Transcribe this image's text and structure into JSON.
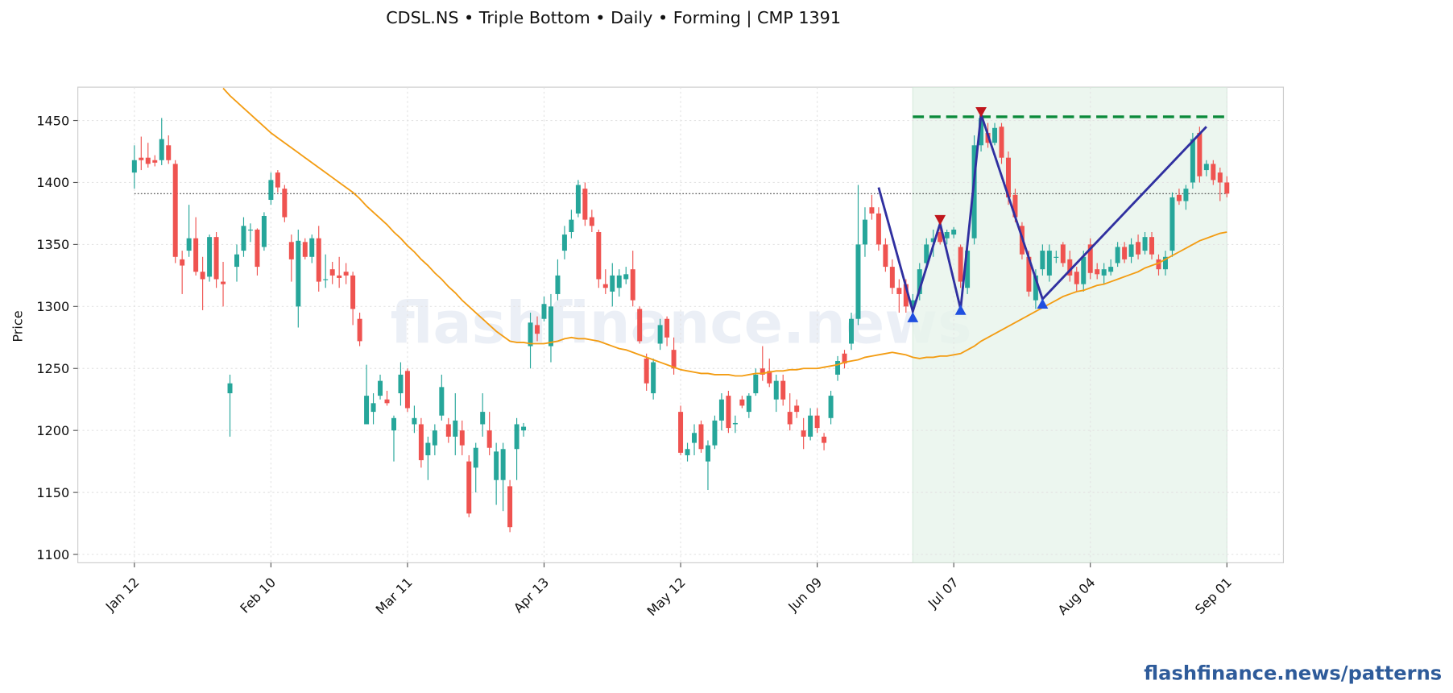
{
  "chart_data": {
    "type": "candlestick",
    "title": "CDSL.NS  •  Triple Bottom  •  Daily  •  Forming  |  CMP 1391",
    "y_label": "Price",
    "watermark": "flashfinance.news",
    "footer": "flashfinance.news/patterns",
    "categories": [
      "Jan 12",
      null,
      null,
      null,
      null,
      null,
      null,
      null,
      null,
      null,
      null,
      null,
      null,
      null,
      null,
      null,
      null,
      null,
      null,
      null,
      "Feb 10",
      null,
      null,
      null,
      null,
      null,
      null,
      null,
      null,
      null,
      null,
      null,
      null,
      null,
      null,
      null,
      null,
      null,
      null,
      null,
      "Mar 11",
      null,
      null,
      null,
      null,
      null,
      null,
      null,
      null,
      null,
      null,
      null,
      null,
      null,
      null,
      null,
      null,
      null,
      null,
      null,
      "Apr 13",
      null,
      null,
      null,
      null,
      null,
      null,
      null,
      null,
      null,
      null,
      null,
      null,
      null,
      null,
      null,
      null,
      null,
      null,
      null,
      "May 12",
      null,
      null,
      null,
      null,
      null,
      null,
      null,
      null,
      null,
      null,
      null,
      null,
      null,
      null,
      null,
      null,
      null,
      null,
      null,
      "Jun 09",
      null,
      null,
      null,
      null,
      null,
      null,
      null,
      null,
      null,
      null,
      null,
      null,
      null,
      null,
      null,
      null,
      null,
      null,
      null,
      "Jul 07",
      null,
      null,
      null,
      null,
      null,
      null,
      null,
      null,
      null,
      null,
      null,
      null,
      null,
      null,
      null,
      null,
      null,
      null,
      null,
      "Aug 04",
      null,
      null,
      null,
      null,
      null,
      null,
      null,
      null,
      null,
      null,
      null,
      null,
      null,
      null,
      null,
      null,
      null,
      null,
      null,
      "Sep 01"
    ],
    "ohlc": [
      [
        1408,
        1430,
        1395,
        1418
      ],
      [
        1420,
        1437,
        1410,
        1418
      ],
      [
        1420,
        1432,
        1412,
        1415
      ],
      [
        1418,
        1422,
        1413,
        1416
      ],
      [
        1418,
        1452,
        1414,
        1435
      ],
      [
        1430,
        1438,
        1415,
        1418
      ],
      [
        1415,
        1418,
        1335,
        1340
      ],
      [
        1338,
        1345,
        1310,
        1333
      ],
      [
        1345,
        1382,
        1340,
        1355
      ],
      [
        1355,
        1372,
        1325,
        1328
      ],
      [
        1328,
        1340,
        1297,
        1322
      ],
      [
        1324,
        1358,
        1320,
        1356
      ],
      [
        1356,
        1360,
        1315,
        1322
      ],
      [
        1320,
        1336,
        1300,
        1318
      ],
      [
        1230,
        1245,
        1195,
        1238
      ],
      [
        1332,
        1350,
        1320,
        1342
      ],
      [
        1345,
        1372,
        1340,
        1365
      ],
      [
        1362,
        1367,
        1352,
        1362
      ],
      [
        1362,
        1363,
        1325,
        1332
      ],
      [
        1348,
        1376,
        1345,
        1373
      ],
      [
        1386,
        1408,
        1382,
        1402
      ],
      [
        1408,
        1410,
        1392,
        1396
      ],
      [
        1395,
        1398,
        1368,
        1372
      ],
      [
        1352,
        1358,
        1320,
        1338
      ],
      [
        1300,
        1362,
        1283,
        1353
      ],
      [
        1352,
        1355,
        1338,
        1340
      ],
      [
        1340,
        1358,
        1335,
        1355
      ],
      [
        1355,
        1365,
        1312,
        1320
      ],
      [
        1322,
        1342,
        1315,
        1322
      ],
      [
        1330,
        1336,
        1318,
        1325
      ],
      [
        1325,
        1340,
        1315,
        1323
      ],
      [
        1328,
        1335,
        1318,
        1325
      ],
      [
        1325,
        1328,
        1285,
        1298
      ],
      [
        1290,
        1295,
        1268,
        1272
      ],
      [
        1205,
        1253,
        1205,
        1228
      ],
      [
        1215,
        1230,
        1205,
        1222
      ],
      [
        1228,
        1245,
        1225,
        1240
      ],
      [
        1225,
        1232,
        1220,
        1222
      ],
      [
        1200,
        1212,
        1175,
        1210
      ],
      [
        1230,
        1255,
        1220,
        1245
      ],
      [
        1248,
        1250,
        1215,
        1218
      ],
      [
        1205,
        1220,
        1198,
        1210
      ],
      [
        1205,
        1210,
        1170,
        1176
      ],
      [
        1180,
        1195,
        1160,
        1190
      ],
      [
        1188,
        1205,
        1180,
        1200
      ],
      [
        1212,
        1245,
        1208,
        1235
      ],
      [
        1205,
        1210,
        1190,
        1195
      ],
      [
        1195,
        1230,
        1180,
        1208
      ],
      [
        1200,
        1208,
        1180,
        1188
      ],
      [
        1175,
        1180,
        1130,
        1133
      ],
      [
        1170,
        1190,
        1150,
        1186
      ],
      [
        1205,
        1230,
        1195,
        1215
      ],
      [
        1200,
        1215,
        1180,
        1186
      ],
      [
        1160,
        1190,
        1140,
        1183
      ],
      [
        1160,
        1190,
        1135,
        1185
      ],
      [
        1155,
        1160,
        1118,
        1122
      ],
      [
        1185,
        1210,
        1160,
        1205
      ],
      [
        1200,
        1206,
        1195,
        1203
      ],
      [
        1268,
        1295,
        1250,
        1287
      ],
      [
        1285,
        1292,
        1272,
        1278
      ],
      [
        1290,
        1308,
        1288,
        1302
      ],
      [
        1268,
        1310,
        1255,
        1300
      ],
      [
        1310,
        1338,
        1305,
        1325
      ],
      [
        1345,
        1365,
        1338,
        1358
      ],
      [
        1360,
        1378,
        1355,
        1370
      ],
      [
        1375,
        1402,
        1372,
        1398
      ],
      [
        1395,
        1400,
        1365,
        1370
      ],
      [
        1372,
        1378,
        1360,
        1365
      ],
      [
        1360,
        1362,
        1315,
        1322
      ],
      [
        1318,
        1330,
        1310,
        1315
      ],
      [
        1312,
        1335,
        1300,
        1325
      ],
      [
        1315,
        1330,
        1308,
        1325
      ],
      [
        1322,
        1332,
        1318,
        1326
      ],
      [
        1330,
        1345,
        1300,
        1305
      ],
      [
        1298,
        1300,
        1270,
        1272
      ],
      [
        1258,
        1262,
        1232,
        1238
      ],
      [
        1230,
        1258,
        1225,
        1255
      ],
      [
        1270,
        1290,
        1265,
        1285
      ],
      [
        1290,
        1292,
        1268,
        1275
      ],
      [
        1265,
        1275,
        1245,
        1250
      ],
      [
        1215,
        1220,
        1180,
        1182
      ],
      [
        1180,
        1190,
        1175,
        1185
      ],
      [
        1190,
        1205,
        1180,
        1198
      ],
      [
        1205,
        1208,
        1182,
        1185
      ],
      [
        1175,
        1192,
        1152,
        1188
      ],
      [
        1188,
        1212,
        1185,
        1208
      ],
      [
        1208,
        1230,
        1200,
        1225
      ],
      [
        1228,
        1232,
        1198,
        1202
      ],
      [
        1205,
        1212,
        1198,
        1206
      ],
      [
        1225,
        1228,
        1218,
        1220
      ],
      [
        1215,
        1230,
        1210,
        1228
      ],
      [
        1230,
        1250,
        1228,
        1245
      ],
      [
        1250,
        1268,
        1240,
        1245
      ],
      [
        1248,
        1258,
        1235,
        1238
      ],
      [
        1225,
        1245,
        1215,
        1240
      ],
      [
        1240,
        1245,
        1220,
        1225
      ],
      [
        1215,
        1230,
        1200,
        1205
      ],
      [
        1220,
        1225,
        1210,
        1215
      ],
      [
        1200,
        1210,
        1185,
        1195
      ],
      [
        1195,
        1218,
        1192,
        1212
      ],
      [
        1212,
        1218,
        1198,
        1202
      ],
      [
        1195,
        1198,
        1184,
        1190
      ],
      [
        1210,
        1232,
        1205,
        1228
      ],
      [
        1245,
        1260,
        1240,
        1256
      ],
      [
        1262,
        1265,
        1250,
        1254
      ],
      [
        1270,
        1295,
        1265,
        1290
      ],
      [
        1290,
        1398,
        1285,
        1350
      ],
      [
        1350,
        1380,
        1340,
        1370
      ],
      [
        1380,
        1390,
        1370,
        1375
      ],
      [
        1375,
        1380,
        1345,
        1350
      ],
      [
        1350,
        1355,
        1328,
        1332
      ],
      [
        1332,
        1338,
        1310,
        1315
      ],
      [
        1315,
        1322,
        1295,
        1310
      ],
      [
        1318,
        1322,
        1295,
        1300
      ],
      [
        1300,
        1310,
        1296,
        1305
      ],
      [
        1310,
        1335,
        1305,
        1330
      ],
      [
        1335,
        1355,
        1330,
        1350
      ],
      [
        1352,
        1362,
        1340,
        1355
      ],
      [
        1360,
        1370,
        1350,
        1352
      ],
      [
        1355,
        1362,
        1350,
        1360
      ],
      [
        1358,
        1364,
        1355,
        1362
      ],
      [
        1348,
        1350,
        1315,
        1320
      ],
      [
        1315,
        1350,
        1310,
        1345
      ],
      [
        1355,
        1438,
        1350,
        1430
      ],
      [
        1430,
        1457,
        1425,
        1452
      ],
      [
        1440,
        1448,
        1428,
        1432
      ],
      [
        1432,
        1448,
        1430,
        1444
      ],
      [
        1445,
        1448,
        1415,
        1420
      ],
      [
        1420,
        1425,
        1382,
        1388
      ],
      [
        1390,
        1395,
        1368,
        1372
      ],
      [
        1365,
        1368,
        1338,
        1342
      ],
      [
        1340,
        1345,
        1308,
        1312
      ],
      [
        1305,
        1330,
        1298,
        1325
      ],
      [
        1330,
        1350,
        1325,
        1345
      ],
      [
        1325,
        1350,
        1320,
        1345
      ],
      [
        1340,
        1345,
        1335,
        1340
      ],
      [
        1350,
        1352,
        1332,
        1335
      ],
      [
        1338,
        1345,
        1320,
        1325
      ],
      [
        1328,
        1332,
        1312,
        1318
      ],
      [
        1318,
        1345,
        1312,
        1340
      ],
      [
        1350,
        1355,
        1322,
        1327
      ],
      [
        1330,
        1335,
        1322,
        1326
      ],
      [
        1325,
        1335,
        1318,
        1330
      ],
      [
        1328,
        1338,
        1325,
        1332
      ],
      [
        1335,
        1352,
        1332,
        1348
      ],
      [
        1348,
        1352,
        1335,
        1338
      ],
      [
        1340,
        1355,
        1335,
        1350
      ],
      [
        1352,
        1358,
        1338,
        1342
      ],
      [
        1345,
        1360,
        1342,
        1356
      ],
      [
        1356,
        1360,
        1338,
        1342
      ],
      [
        1338,
        1342,
        1325,
        1330
      ],
      [
        1330,
        1345,
        1325,
        1340
      ],
      [
        1345,
        1392,
        1340,
        1388
      ],
      [
        1390,
        1395,
        1382,
        1385
      ],
      [
        1385,
        1398,
        1378,
        1395
      ],
      [
        1400,
        1440,
        1395,
        1435
      ],
      [
        1440,
        1445,
        1400,
        1405
      ],
      [
        1410,
        1418,
        1405,
        1415
      ],
      [
        1415,
        1418,
        1398,
        1402
      ],
      [
        1408,
        1412,
        1385,
        1400
      ],
      [
        1400,
        1405,
        1388,
        1391
      ]
    ],
    "up_color": "#26a69a",
    "down_color": "#ef5350",
    "moving_average": {
      "color": "#f39c12",
      "values": [
        null,
        null,
        null,
        null,
        null,
        null,
        null,
        null,
        null,
        null,
        null,
        null,
        null,
        1476,
        1470,
        1465,
        1460,
        1455,
        1450,
        1445,
        1440,
        1436,
        1432,
        1428,
        1424,
        1420,
        1416,
        1412,
        1408,
        1404,
        1400,
        1396,
        1392,
        1387,
        1381,
        1376,
        1371,
        1366,
        1360,
        1355,
        1349,
        1344,
        1338,
        1333,
        1327,
        1322,
        1316,
        1311,
        1305,
        1300,
        1295,
        1290,
        1285,
        1280,
        1276,
        1272,
        1271,
        1271,
        1270,
        1270,
        1270,
        1271,
        1272,
        1274,
        1275,
        1274,
        1274,
        1273,
        1272,
        1270,
        1268,
        1266,
        1265,
        1263,
        1261,
        1259,
        1257,
        1255,
        1253,
        1251,
        1249,
        1248,
        1247,
        1246,
        1246,
        1245,
        1245,
        1245,
        1244,
        1244,
        1245,
        1246,
        1246,
        1247,
        1248,
        1248,
        1249,
        1249,
        1250,
        1250,
        1250,
        1251,
        1252,
        1253,
        1255,
        1256,
        1257,
        1259,
        1260,
        1261,
        1262,
        1263,
        1262,
        1261,
        1259,
        1258,
        1259,
        1259,
        1260,
        1260,
        1261,
        1262,
        1265,
        1268,
        1272,
        1275,
        1278,
        1281,
        1284,
        1287,
        1290,
        1293,
        1296,
        1299,
        1302,
        1305,
        1308,
        1310,
        1312,
        1313,
        1315,
        1317,
        1318,
        1320,
        1322,
        1324,
        1326,
        1328,
        1331,
        1333,
        1335,
        1338,
        1341,
        1344,
        1347,
        1350,
        1353,
        1355,
        1357,
        1359,
        1360
      ]
    },
    "cmp_line": 1391,
    "pattern_zone": {
      "x": [
        114,
        160
      ],
      "color": "#e8f4ec"
    },
    "resistance": {
      "value": 1453,
      "x": [
        114,
        160
      ],
      "color": "#0b8a3a"
    },
    "zigzag": {
      "color": "#3030a0",
      "x": [
        109,
        114,
        118,
        121,
        124,
        133,
        157
      ],
      "values": [
        1396,
        1296,
        1367,
        1298,
        1455,
        1306,
        1445
      ]
    },
    "troughs": {
      "color": "#1f4fe0",
      "x": [
        114,
        121,
        133
      ],
      "values": [
        1291,
        1297,
        1302
      ]
    },
    "peaks": {
      "color": "#c0161c",
      "x": [
        118,
        124
      ],
      "values": [
        1370,
        1457
      ]
    },
    "ylim": [
      1093.3,
      1476.9
    ],
    "yticks": [
      1100,
      1150,
      1200,
      1250,
      1300,
      1350,
      1400,
      1450
    ],
    "grid": true
  }
}
